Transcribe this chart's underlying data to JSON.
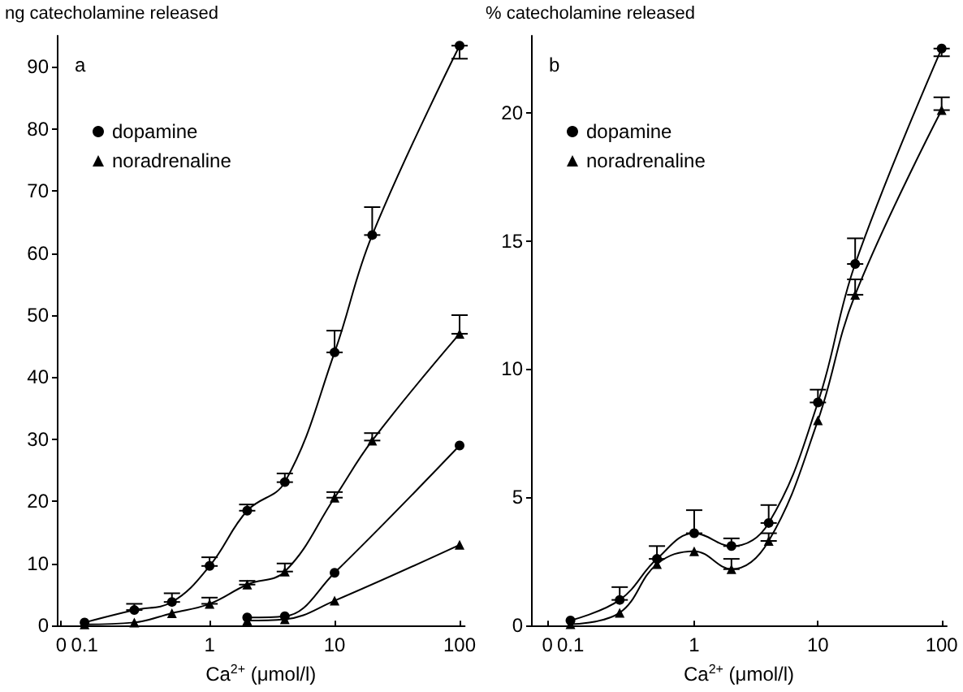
{
  "chart_data": [
    {
      "type": "line",
      "ylabel": "ng catecholamine released",
      "xlabel": "Ca$^{2+}$ (μmol/l)",
      "annotations": [
        "a"
      ],
      "log": "x",
      "legend": "top left",
      "grid": false,
      "line_style": "solid",
      "xlim": [
        0.06,
        110
      ],
      "xticks": [
        {
          "value": 0.065,
          "label": "0"
        },
        0.1,
        1,
        10,
        100
      ],
      "ylim": [
        0,
        95
      ],
      "yticks": [
        0,
        10,
        20,
        30,
        40,
        50,
        60,
        70,
        80,
        90
      ],
      "series": [
        {
          "name": "dopamine",
          "color": "#000000",
          "marker": "circle",
          "x": [
            0.1,
            0.25,
            0.5,
            1,
            2,
            4,
            10,
            20,
            100
          ],
          "values": [
            0.5,
            2.5,
            3.8,
            9.6,
            18.5,
            23.1,
            44,
            62.9,
            93.4
          ],
          "errors": [
            null,
            [
              2.5,
              3.5
            ],
            [
              3.8,
              5.2
            ],
            [
              9.6,
              11
            ],
            [
              18.5,
              19.5
            ],
            [
              23.1,
              24.5
            ],
            [
              44,
              47.5
            ],
            [
              62.9,
              67.4
            ],
            [
              91.3,
              93.4
            ]
          ]
        },
        {
          "name": "noradrenaline",
          "color": "#000000",
          "marker": "triangle",
          "x": [
            0.1,
            0.25,
            0.5,
            1,
            2,
            4,
            10,
            20,
            100
          ],
          "values": [
            0.2,
            0.5,
            2,
            3.5,
            6.6,
            8.7,
            20.6,
            29.8,
            47
          ],
          "errors": [
            null,
            null,
            null,
            [
              3.5,
              4.5
            ],
            [
              6.6,
              7.2
            ],
            [
              8.7,
              10
            ],
            [
              20.6,
              21.5
            ],
            [
              29.8,
              31
            ],
            [
              47,
              50
            ]
          ]
        },
        {
          "color": "#000000",
          "marker": "circle",
          "x": [
            2,
            4,
            10,
            100
          ],
          "values": [
            1.3,
            1.5,
            8.5,
            29
          ]
        },
        {
          "color": "#000000",
          "marker": "triangle",
          "x": [
            2,
            4,
            10,
            100
          ],
          "values": [
            0.8,
            1,
            4,
            13
          ]
        }
      ]
    },
    {
      "type": "line",
      "ylabel": "% catecholamine released",
      "xlabel": "Ca$^{2+}$ (μmol/l)",
      "annotations": [
        "b"
      ],
      "log": "x",
      "legend": "top left",
      "grid": false,
      "line_style": "solid",
      "xlim": [
        0.048,
        110
      ],
      "xticks": [
        {
          "value": 0.065,
          "label": "0"
        },
        0.1,
        1,
        10,
        100
      ],
      "ylim": [
        0,
        23
      ],
      "yticks": [
        0,
        5,
        10,
        15,
        20
      ],
      "series": [
        {
          "name": "dopamine",
          "color": "#000000",
          "marker": "circle",
          "x": [
            0.1,
            0.25,
            0.5,
            1,
            2,
            4,
            10,
            20,
            100
          ],
          "values": [
            0.2,
            1,
            2.6,
            3.6,
            3.1,
            4,
            8.7,
            14.1,
            22.5
          ],
          "errors": [
            null,
            [
              1,
              1.5
            ],
            [
              2.6,
              3.1
            ],
            [
              3.6,
              4.5
            ],
            [
              3.1,
              3.4
            ],
            [
              4,
              4.7
            ],
            [
              8.7,
              9.2
            ],
            [
              14.1,
              15.1
            ],
            [
              22.2,
              22.5
            ]
          ]
        },
        {
          "name": "noradrenaline",
          "color": "#000000",
          "marker": "triangle",
          "x": [
            0.1,
            0.25,
            0.5,
            1,
            2,
            4,
            10,
            20,
            100
          ],
          "values": [
            0.05,
            0.5,
            2.4,
            2.9,
            2.2,
            3.3,
            8,
            12.9,
            20.1
          ],
          "errors": [
            null,
            null,
            null,
            null,
            [
              2.2,
              2.6
            ],
            [
              3.3,
              3.6
            ],
            null,
            [
              12.9,
              13.5
            ],
            [
              20.1,
              20.6
            ]
          ]
        }
      ]
    }
  ]
}
